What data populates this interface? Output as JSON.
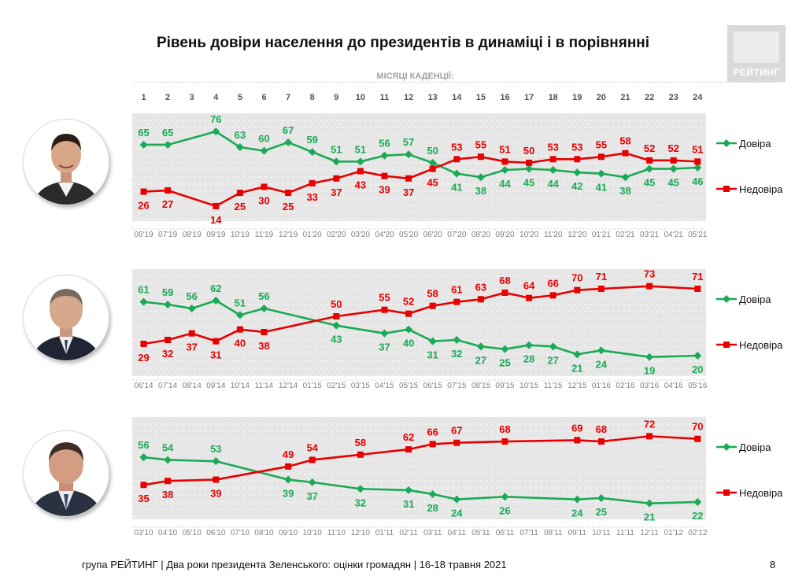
{
  "title": "Рівень довіри населення до президентів в динаміці і в порівнянні",
  "subtitle": "МІСЯЦІ КАДЕНЦІЇ:",
  "logo_text": "РЕЙТИНГ",
  "footer": "група РЕЙТИНГ | Два роки президента Зеленського: оцінки громадян  | 16-18 травня 2021",
  "page_number": "8",
  "colors": {
    "trust": "#1aaa55",
    "distrust": "#e60000",
    "panel": "#e6e6e6"
  },
  "chart_data": [
    {
      "type": "line",
      "months": [
        1,
        2,
        3,
        4,
        5,
        6,
        7,
        8,
        9,
        10,
        11,
        12,
        13,
        14,
        15,
        16,
        17,
        18,
        19,
        20,
        21,
        22,
        23,
        24
      ],
      "categories": [
        "06'19",
        "07'19",
        "08'19",
        "09'19",
        "10'19",
        "11'19",
        "12'19",
        "01'20",
        "02'20",
        "03'20",
        "04'20",
        "05'20",
        "06'20",
        "07'20",
        "08'20",
        "09'20",
        "10'20",
        "11'20",
        "12'20",
        "01'21",
        "02'21",
        "03'21",
        "04'21",
        "05'21"
      ],
      "series": [
        {
          "name": "Довіра",
          "color": "#1aaa55",
          "values": [
            65,
            65,
            null,
            76,
            63,
            60,
            67,
            59,
            51,
            51,
            56,
            57,
            50,
            41,
            38,
            44,
            45,
            44,
            42,
            41,
            38,
            45,
            45,
            46
          ]
        },
        {
          "name": "Недовіра",
          "color": "#e60000",
          "values": [
            26,
            27,
            null,
            14,
            25,
            30,
            25,
            33,
            37,
            43,
            39,
            37,
            45,
            53,
            55,
            51,
            50,
            53,
            53,
            55,
            58,
            52,
            52,
            51
          ]
        }
      ],
      "ylim": [
        10,
        82
      ],
      "legend": "right"
    },
    {
      "type": "line",
      "categories": [
        "06'14",
        "07'14",
        "08'14",
        "09'14",
        "10'14",
        "11'14",
        "12'14",
        "01'15",
        "02'15",
        "03'15",
        "04'15",
        "05'15",
        "06'15",
        "07'15",
        "08'15",
        "09'15",
        "10'15",
        "11'15",
        "12'15",
        "01'16",
        "02'16",
        "03'16",
        "04'16",
        "05'16"
      ],
      "series": [
        {
          "name": "Довіра",
          "color": "#1aaa55",
          "values": [
            61,
            59,
            56,
            62,
            51,
            56,
            null,
            null,
            43,
            null,
            37,
            40,
            31,
            32,
            27,
            25,
            28,
            27,
            21,
            24,
            null,
            19,
            null,
            20
          ]
        },
        {
          "name": "Недовіра",
          "color": "#e60000",
          "values": [
            29,
            32,
            37,
            31,
            40,
            38,
            null,
            null,
            50,
            null,
            55,
            52,
            58,
            61,
            63,
            68,
            64,
            66,
            70,
            71,
            null,
            73,
            null,
            71
          ]
        }
      ],
      "ylim": [
        14,
        80
      ],
      "legend": "right"
    },
    {
      "type": "line",
      "categories": [
        "03'10",
        "04'10",
        "05'10",
        "06'10",
        "07'10",
        "08'10",
        "09'10",
        "10'10",
        "11'10",
        "12'10",
        "01'11",
        "02'11",
        "03'11",
        "04'11",
        "05'11",
        "06'11",
        "07'11",
        "08'11",
        "09'11",
        "10'11",
        "11'11",
        "12'11",
        "01'12",
        "02'12"
      ],
      "series": [
        {
          "name": "Довіра",
          "color": "#1aaa55",
          "values": [
            56,
            54,
            null,
            53,
            null,
            null,
            39,
            37,
            null,
            32,
            null,
            31,
            28,
            24,
            null,
            26,
            null,
            null,
            24,
            25,
            null,
            21,
            null,
            22
          ]
        },
        {
          "name": "Недовіра",
          "color": "#e60000",
          "values": [
            35,
            38,
            null,
            39,
            null,
            null,
            49,
            54,
            null,
            58,
            null,
            62,
            66,
            67,
            null,
            68,
            null,
            null,
            69,
            68,
            null,
            72,
            null,
            70
          ]
        }
      ],
      "ylim": [
        16,
        80
      ],
      "legend": "right"
    }
  ]
}
